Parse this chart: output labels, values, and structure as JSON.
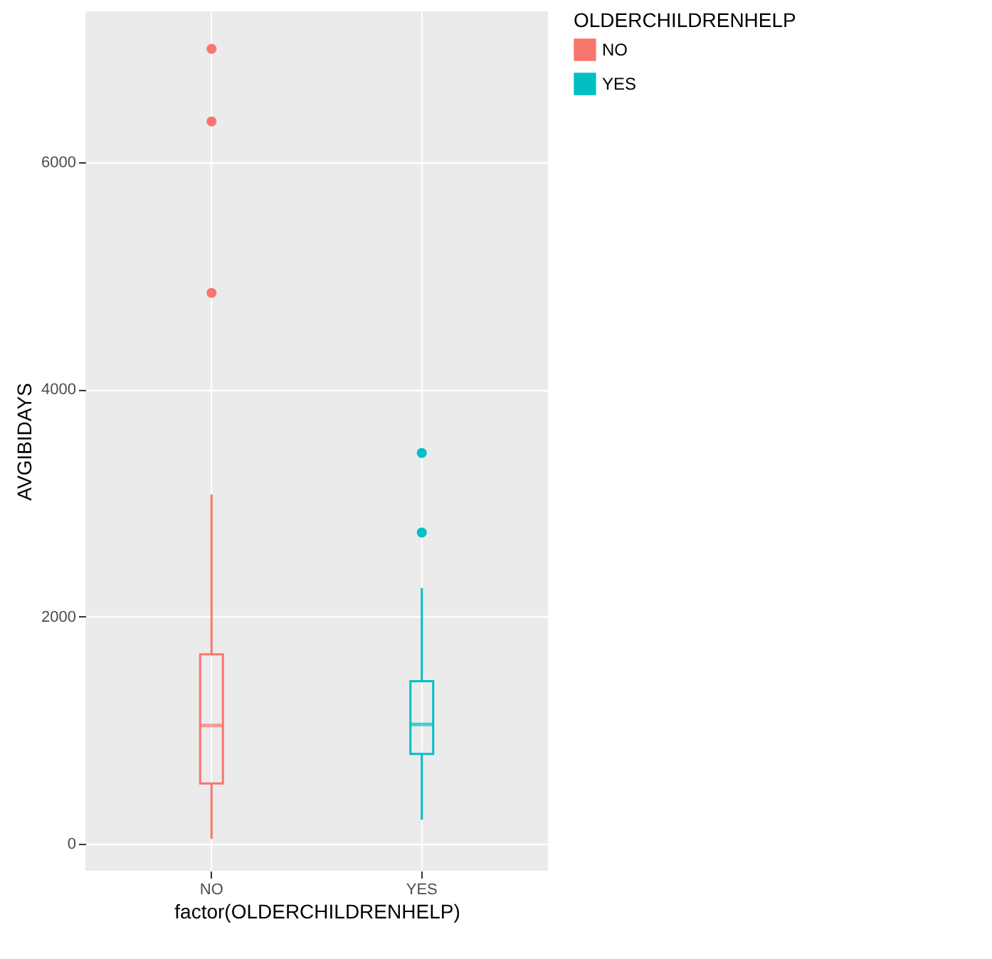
{
  "chart_data": {
    "type": "box",
    "xlabel": "factor(OLDERCHILDRENHELP)",
    "ylabel": "AVGIBIDAYS",
    "legend_title": "OLDERCHILDRENHELP",
    "categories": [
      "NO",
      "YES"
    ],
    "series": [
      {
        "name": "NO",
        "color": "#f8766d",
        "boxes": [
          {
            "low": 40,
            "q1": 530,
            "median": 1040,
            "q3": 1667,
            "high": 3075,
            "outliers": [
              4850,
              6360,
              7000
            ]
          },
          null
        ]
      },
      {
        "name": "YES",
        "color": "#00bfc4",
        "boxes": [
          null,
          {
            "low": 210,
            "q1": 790,
            "median": 1050,
            "q3": 1430,
            "high": 2250,
            "outliers": [
              2740,
              3440
            ]
          }
        ]
      }
    ],
    "ylim": [
      -240,
      7330
    ],
    "yticks": [
      0,
      2000,
      4000,
      6000
    ],
    "grid": true,
    "legend": "right"
  }
}
